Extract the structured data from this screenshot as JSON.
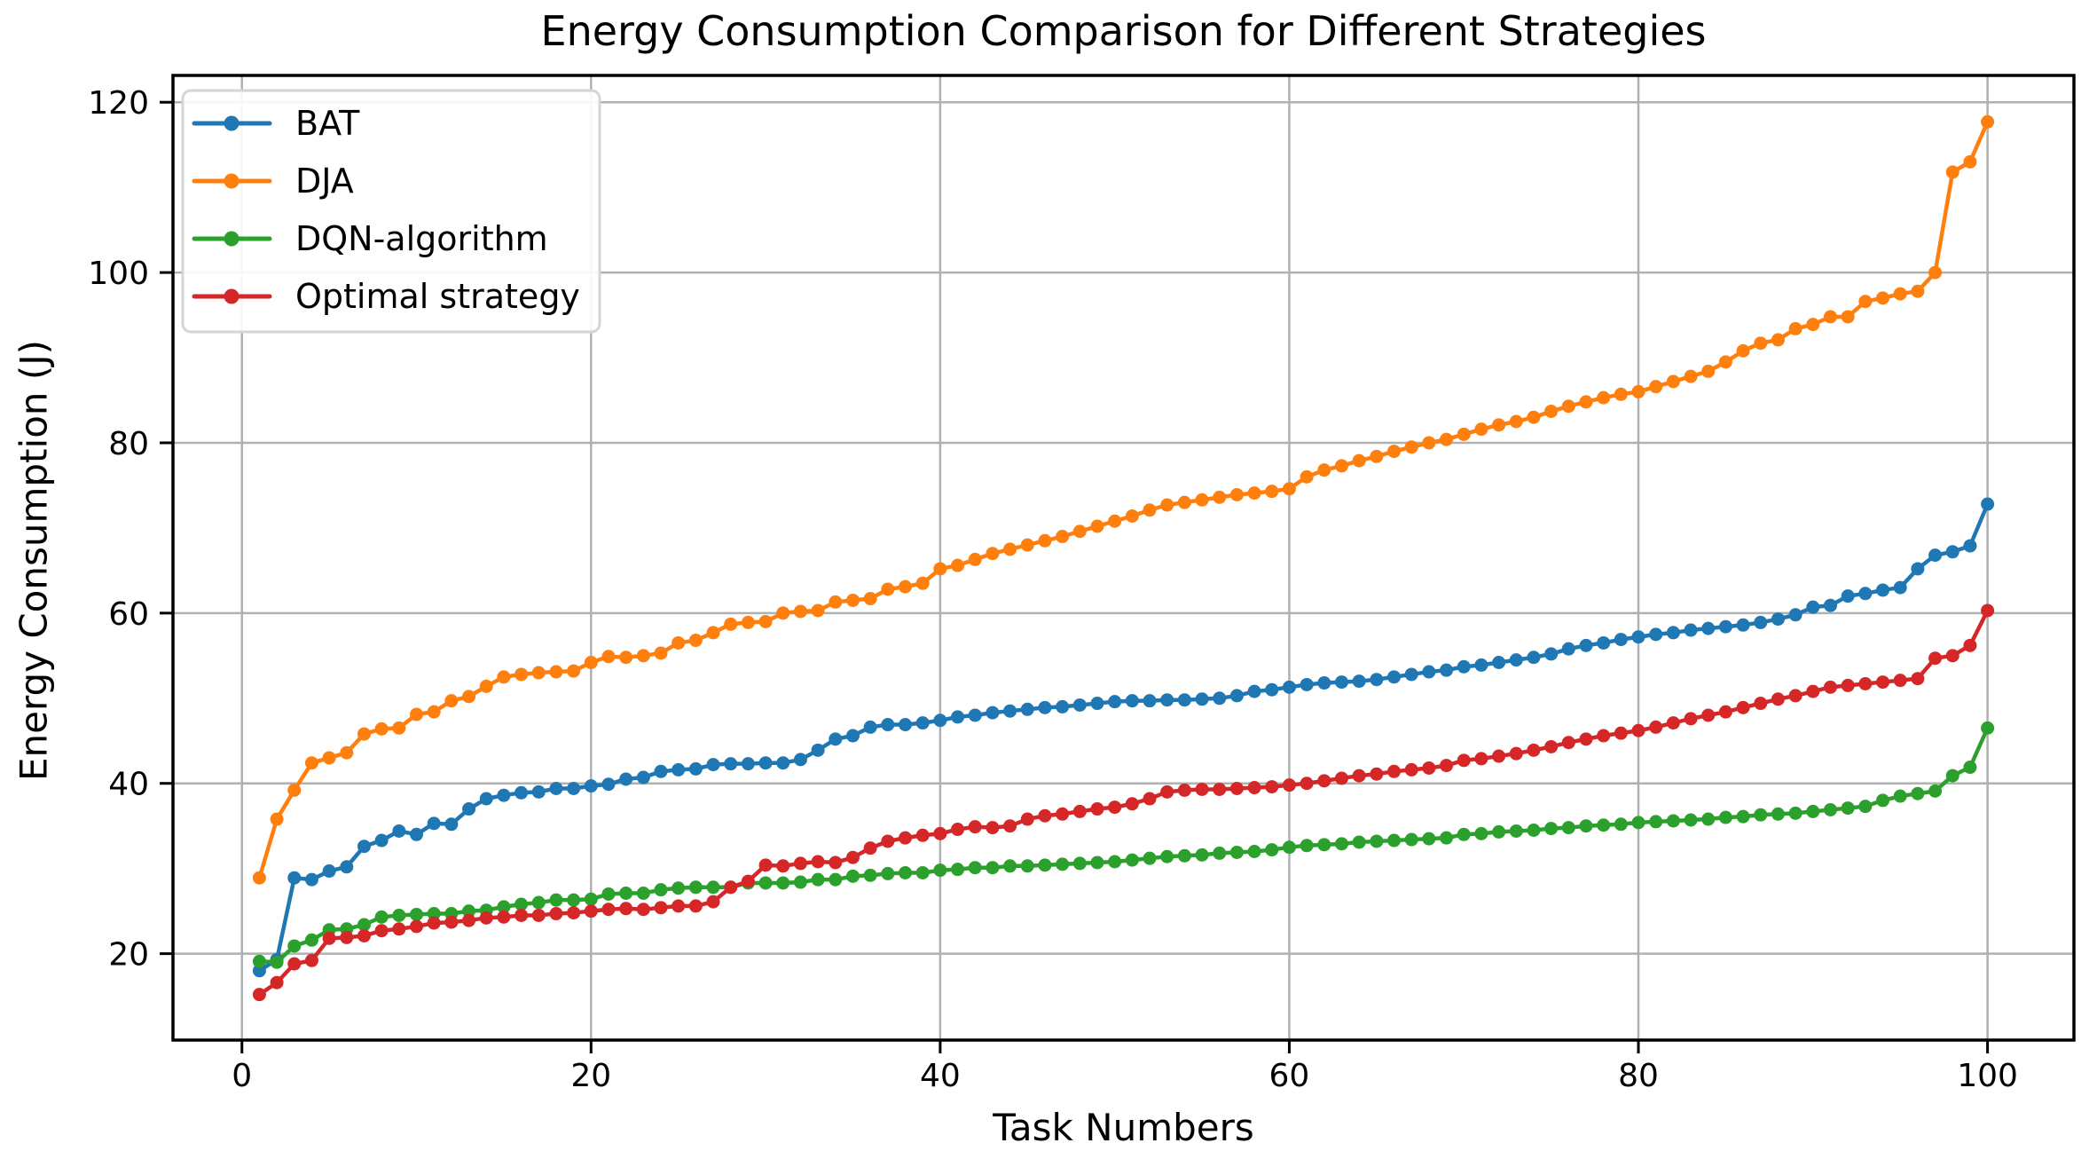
{
  "figure": {
    "title": "Energy Consumption Comparison for Different Strategies",
    "xlabel": "Task Numbers",
    "ylabel": "Energy Consumption (J)"
  },
  "colors": {
    "background": "#ffffff",
    "grid": "#b0b0b0",
    "spine": "#000000",
    "tick_text": "#000000",
    "legend_border": "#d5d5d5",
    "legend_background": "#ffffff"
  },
  "chart_data": {
    "type": "line",
    "title": "Energy Consumption Comparison for Different Strategies",
    "xlabel": "Task Numbers",
    "ylabel": "Energy Consumption (J)",
    "grid": true,
    "legend_position": "upper left",
    "xlim": [
      -3.95,
      104.95
    ],
    "ylim": [
      9.85,
      123.15
    ],
    "x_ticks": [
      0,
      20,
      40,
      60,
      80,
      100
    ],
    "y_ticks": [
      20,
      40,
      60,
      80,
      100,
      120
    ],
    "marker": "o",
    "x": [
      1,
      2,
      3,
      4,
      5,
      6,
      7,
      8,
      9,
      10,
      11,
      12,
      13,
      14,
      15,
      16,
      17,
      18,
      19,
      20,
      21,
      22,
      23,
      24,
      25,
      26,
      27,
      28,
      29,
      30,
      31,
      32,
      33,
      34,
      35,
      36,
      37,
      38,
      39,
      40,
      41,
      42,
      43,
      44,
      45,
      46,
      47,
      48,
      49,
      50,
      51,
      52,
      53,
      54,
      55,
      56,
      57,
      58,
      59,
      60,
      61,
      62,
      63,
      64,
      65,
      66,
      67,
      68,
      69,
      70,
      71,
      72,
      73,
      74,
      75,
      76,
      77,
      78,
      79,
      80,
      81,
      82,
      83,
      84,
      85,
      86,
      87,
      88,
      89,
      90,
      91,
      92,
      93,
      94,
      95,
      96,
      97,
      98,
      99,
      100
    ],
    "series": [
      {
        "name": "BAT",
        "color": "#1f77b4",
        "values": [
          18.0,
          19.3,
          28.9,
          28.7,
          29.7,
          30.2,
          32.6,
          33.3,
          34.4,
          34.0,
          35.3,
          35.2,
          37.0,
          38.2,
          38.6,
          38.9,
          39.0,
          39.4,
          39.4,
          39.7,
          39.9,
          40.5,
          40.7,
          41.4,
          41.6,
          41.7,
          42.2,
          42.3,
          42.3,
          42.4,
          42.4,
          42.8,
          43.9,
          45.2,
          45.6,
          46.6,
          46.9,
          46.9,
          47.1,
          47.4,
          47.8,
          48.0,
          48.3,
          48.5,
          48.7,
          48.9,
          49.0,
          49.2,
          49.4,
          49.6,
          49.7,
          49.7,
          49.8,
          49.8,
          49.9,
          50.0,
          50.3,
          50.8,
          51.0,
          51.3,
          51.6,
          51.8,
          51.9,
          52.0,
          52.2,
          52.5,
          52.8,
          53.1,
          53.3,
          53.7,
          53.9,
          54.2,
          54.5,
          54.8,
          55.2,
          55.8,
          56.2,
          56.5,
          56.9,
          57.2,
          57.5,
          57.7,
          58.0,
          58.2,
          58.4,
          58.6,
          58.9,
          59.3,
          59.8,
          60.7,
          60.9,
          62.0,
          62.3,
          62.7,
          63.0,
          65.2,
          66.8,
          67.2,
          67.9,
          72.8
        ]
      },
      {
        "name": "DJA",
        "color": "#ff7f0e",
        "values": [
          28.9,
          35.8,
          39.2,
          42.4,
          43.0,
          43.6,
          45.8,
          46.4,
          46.5,
          48.1,
          48.4,
          49.7,
          50.2,
          51.4,
          52.5,
          52.8,
          53.0,
          53.1,
          53.2,
          54.2,
          54.9,
          54.8,
          55.0,
          55.3,
          56.5,
          56.8,
          57.7,
          58.7,
          58.9,
          59.0,
          60.0,
          60.2,
          60.3,
          61.3,
          61.5,
          61.7,
          62.8,
          63.1,
          63.5,
          65.2,
          65.6,
          66.3,
          67.0,
          67.5,
          68.0,
          68.5,
          69.0,
          69.6,
          70.2,
          70.8,
          71.4,
          72.1,
          72.7,
          73.0,
          73.3,
          73.6,
          73.9,
          74.1,
          74.3,
          74.6,
          76.0,
          76.8,
          77.3,
          77.9,
          78.4,
          79.0,
          79.5,
          80.0,
          80.4,
          81.0,
          81.6,
          82.1,
          82.5,
          83.0,
          83.7,
          84.3,
          84.8,
          85.3,
          85.7,
          86.0,
          86.6,
          87.2,
          87.8,
          88.4,
          89.5,
          90.8,
          91.7,
          92.1,
          93.4,
          93.9,
          94.8,
          94.8,
          96.6,
          97.0,
          97.5,
          97.8,
          100.0,
          111.8,
          113.0,
          117.7
        ]
      },
      {
        "name": "DQN-algorithm",
        "color": "#2ca02c",
        "values": [
          19.1,
          19.0,
          20.9,
          21.6,
          22.8,
          22.9,
          23.4,
          24.3,
          24.5,
          24.6,
          24.7,
          24.7,
          25.0,
          25.1,
          25.5,
          25.8,
          26.0,
          26.3,
          26.3,
          26.4,
          27.0,
          27.1,
          27.1,
          27.5,
          27.7,
          27.8,
          27.8,
          27.8,
          28.3,
          28.3,
          28.3,
          28.4,
          28.7,
          28.7,
          29.1,
          29.2,
          29.4,
          29.5,
          29.5,
          29.8,
          29.9,
          30.1,
          30.1,
          30.3,
          30.3,
          30.4,
          30.5,
          30.6,
          30.7,
          30.8,
          31.0,
          31.2,
          31.4,
          31.5,
          31.6,
          31.8,
          31.9,
          32.0,
          32.2,
          32.5,
          32.7,
          32.8,
          32.9,
          33.1,
          33.2,
          33.3,
          33.4,
          33.5,
          33.6,
          34.0,
          34.1,
          34.3,
          34.4,
          34.5,
          34.7,
          34.8,
          35.0,
          35.1,
          35.2,
          35.4,
          35.5,
          35.6,
          35.7,
          35.8,
          36.0,
          36.1,
          36.3,
          36.4,
          36.5,
          36.7,
          36.9,
          37.1,
          37.3,
          38.0,
          38.5,
          38.8,
          39.1,
          40.9,
          41.9,
          46.5
        ]
      },
      {
        "name": "Optimal strategy",
        "color": "#d62728",
        "values": [
          15.2,
          16.6,
          18.8,
          19.2,
          21.8,
          21.9,
          22.1,
          22.7,
          22.9,
          23.2,
          23.6,
          23.7,
          23.9,
          24.2,
          24.3,
          24.5,
          24.5,
          24.7,
          24.8,
          25.0,
          25.2,
          25.3,
          25.2,
          25.4,
          25.6,
          25.6,
          26.1,
          27.8,
          28.5,
          30.4,
          30.3,
          30.6,
          30.8,
          30.7,
          31.3,
          32.4,
          33.2,
          33.6,
          33.9,
          34.1,
          34.6,
          34.9,
          34.8,
          35.0,
          35.8,
          36.2,
          36.4,
          36.7,
          37.0,
          37.2,
          37.6,
          38.2,
          39.0,
          39.2,
          39.3,
          39.3,
          39.4,
          39.5,
          39.6,
          39.8,
          40.0,
          40.3,
          40.6,
          40.9,
          41.1,
          41.4,
          41.6,
          41.8,
          42.1,
          42.7,
          42.9,
          43.2,
          43.5,
          43.9,
          44.3,
          44.8,
          45.2,
          45.6,
          45.9,
          46.2,
          46.6,
          47.1,
          47.6,
          48.0,
          48.4,
          48.9,
          49.4,
          49.9,
          50.3,
          50.8,
          51.3,
          51.5,
          51.7,
          51.9,
          52.1,
          52.3,
          54.7,
          55.0,
          56.2,
          60.3
        ]
      }
    ]
  }
}
